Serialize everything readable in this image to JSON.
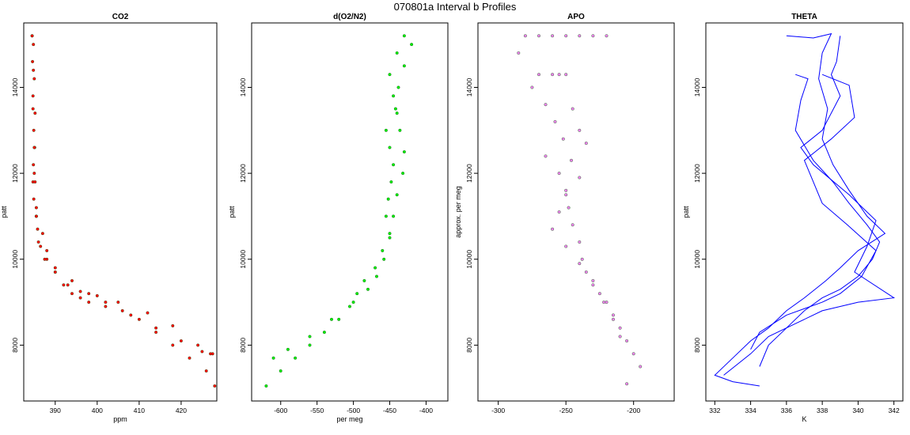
{
  "title": "070801a   Interval b Profiles",
  "chart_data": [
    {
      "type": "scatter",
      "title": "CO2",
      "xlabel": "ppm",
      "ylabel": "patt",
      "xlim": [
        382.5,
        428.5
      ],
      "ylim": [
        6700,
        15500
      ],
      "xticks": [
        390,
        400,
        410,
        420
      ],
      "yticks": [
        8000,
        10000,
        12000,
        14000
      ],
      "color": "#ff0000",
      "series": [
        {
          "x": [
            384.5,
            384.8,
            384.6,
            385.0,
            384.7,
            385.2,
            384.9,
            385.1,
            384.8,
            384.7,
            384.9,
            385.5,
            387.0,
            388.0,
            390.0,
            394.0,
            398.0,
            402.0,
            406.0,
            410.0,
            414.0,
            418.0,
            422.0,
            426.0,
            428.0
          ],
          "y": [
            15200,
            15000,
            14600,
            14200,
            13800,
            13400,
            13000,
            12600,
            12200,
            11800,
            11400,
            11000,
            10600,
            10200,
            9800,
            9500,
            9200,
            9000,
            8800,
            8600,
            8300,
            8000,
            7700,
            7400,
            7050
          ]
        },
        {
          "x": [
            384.5,
            384.8,
            384.7,
            385.0,
            385.2,
            385.5,
            385.8,
            386.5,
            388.0,
            390.0,
            392.0,
            394.0,
            396.0,
            398.0,
            402.0,
            408.0,
            414.0,
            420.0,
            425.0,
            427.0
          ],
          "y": [
            15200,
            14400,
            13500,
            12600,
            11800,
            11200,
            10700,
            10300,
            10000,
            9700,
            9400,
            9200,
            9100,
            9000,
            8900,
            8700,
            8400,
            8100,
            7850,
            7800
          ]
        },
        {
          "x": [
            385.0,
            385.5,
            386.0,
            387.5,
            390.0,
            393.0,
            396.0,
            400.0,
            405.0,
            412.0,
            418.0,
            424.0,
            427.5
          ],
          "y": [
            12000,
            11000,
            10400,
            10000,
            9700,
            9400,
            9250,
            9150,
            9000,
            8750,
            8450,
            8000,
            7800
          ]
        }
      ]
    },
    {
      "type": "scatter",
      "title": "d(O2/N2)",
      "xlabel": "per meg",
      "ylabel": "patt",
      "xlim": [
        -640,
        -370
      ],
      "ylim": [
        6700,
        15500
      ],
      "xticks": [
        -600,
        -550,
        -500,
        -450,
        -400
      ],
      "yticks": [
        8000,
        10000,
        12000,
        14000
      ],
      "color": "#00ee00",
      "series": [
        {
          "x": [
            -430,
            -440,
            -450,
            -445,
            -440,
            -455,
            -450,
            -445,
            -448,
            -452,
            -455,
            -450,
            -460,
            -470,
            -485,
            -495,
            -505,
            -520,
            -540,
            -560,
            -580,
            -600,
            -620
          ],
          "y": [
            15200,
            14800,
            14300,
            13800,
            13400,
            13000,
            12600,
            12200,
            11800,
            11400,
            11000,
            10600,
            10200,
            9800,
            9500,
            9200,
            8900,
            8600,
            8300,
            8000,
            7700,
            7400,
            7050
          ]
        },
        {
          "x": [
            -420,
            -430,
            -438,
            -442,
            -436,
            -430,
            -432,
            -440,
            -445,
            -450,
            -458,
            -468,
            -480,
            -500,
            -530,
            -560,
            -590,
            -610
          ],
          "y": [
            15000,
            14500,
            14000,
            13500,
            13000,
            12500,
            12000,
            11500,
            11000,
            10500,
            10000,
            9600,
            9300,
            9000,
            8600,
            8200,
            7900,
            7700
          ]
        }
      ]
    },
    {
      "type": "scatter",
      "title": "APO",
      "xlabel": "",
      "ylabel": "approx. per meg",
      "xlim": [
        -315,
        -170
      ],
      "ylim": [
        6700,
        15500
      ],
      "xticks": [
        -300,
        -250,
        -200
      ],
      "yticks": [
        8000,
        10000,
        12000,
        14000
      ],
      "color": "#ee82ee",
      "series": [
        {
          "x": [
            -280,
            -270,
            -260,
            -250,
            -240,
            -230,
            -220,
            -270,
            -260,
            -255,
            -250,
            -245,
            -240,
            -235,
            -265,
            -255,
            -250,
            -248,
            -245,
            -240,
            -238,
            -235,
            -230,
            -225,
            -220,
            -215,
            -210,
            -205,
            -200,
            -195
          ],
          "y": [
            15200,
            15200,
            15200,
            15200,
            15200,
            15200,
            15200,
            14300,
            14300,
            14300,
            14300,
            13500,
            13000,
            12700,
            12400,
            12000,
            11600,
            11200,
            10800,
            10400,
            10000,
            9700,
            9500,
            9200,
            9000,
            8700,
            8400,
            8100,
            7800,
            7500
          ]
        },
        {
          "x": [
            -285,
            -275,
            -265,
            -258,
            -252,
            -246,
            -240,
            -250,
            -255,
            -260,
            -250,
            -240,
            -230,
            -222,
            -215,
            -210,
            -205
          ],
          "y": [
            14800,
            14000,
            13600,
            13200,
            12800,
            12300,
            11900,
            11500,
            11100,
            10700,
            10300,
            9900,
            9400,
            9000,
            8600,
            8200,
            7100
          ]
        }
      ]
    },
    {
      "type": "line",
      "title": "THETA",
      "xlabel": "K",
      "ylabel": "patt",
      "xlim": [
        331.5,
        342.5
      ],
      "ylim": [
        6700,
        15500
      ],
      "xticks": [
        332,
        334,
        336,
        338,
        340,
        342
      ],
      "yticks": [
        8000,
        10000,
        12000,
        14000
      ],
      "color": "#0000ff",
      "series": [
        {
          "x": [
            336.0,
            337.5,
            338.5,
            338.0,
            337.8,
            338.3,
            338.0,
            338.6,
            339.5,
            340.5,
            341.5,
            340.0,
            339.0,
            338.2,
            337.0,
            336.0,
            335.0,
            334.0,
            333.0,
            332.0,
            333.0,
            334.5
          ],
          "y": [
            15200,
            15150,
            15250,
            14800,
            14200,
            13500,
            12800,
            12200,
            11600,
            11000,
            10600,
            10200,
            9800,
            9500,
            9100,
            8800,
            8400,
            8100,
            7700,
            7300,
            7150,
            7050
          ]
        },
        {
          "x": [
            339.0,
            338.8,
            338.5,
            339.0,
            338.0,
            336.8,
            337.5,
            339.5,
            341.0,
            340.5,
            339.8,
            342.0,
            340.0,
            338.0,
            336.5,
            335.0,
            334.0,
            332.5
          ],
          "y": [
            15200,
            14600,
            14300,
            13800,
            13000,
            12600,
            12200,
            11500,
            10900,
            10300,
            9700,
            9100,
            9000,
            8800,
            8500,
            8200,
            7800,
            7300
          ]
        },
        {
          "x": [
            336.5,
            337.2,
            336.8,
            336.5,
            337.5,
            338.6,
            339.5,
            340.5,
            341.2,
            340.8,
            340.0,
            339.0,
            338.0,
            337.0,
            336.0,
            335.0,
            334.5
          ],
          "y": [
            14300,
            14200,
            13700,
            13000,
            12300,
            11800,
            11300,
            10800,
            10400,
            10000,
            9600,
            9300,
            9100,
            8800,
            8400,
            8000,
            7500
          ]
        },
        {
          "x": [
            338.0,
            339.5,
            339.8,
            338.5,
            337.6,
            337.0,
            337.3,
            338.0,
            339.4,
            341.0,
            340.2,
            339.0,
            338.0,
            336.0,
            334.5,
            334.0
          ],
          "y": [
            14300,
            14050,
            13300,
            12800,
            12500,
            12300,
            12000,
            11300,
            10800,
            10200,
            9600,
            9200,
            9000,
            8700,
            8300,
            7900
          ]
        }
      ]
    }
  ]
}
